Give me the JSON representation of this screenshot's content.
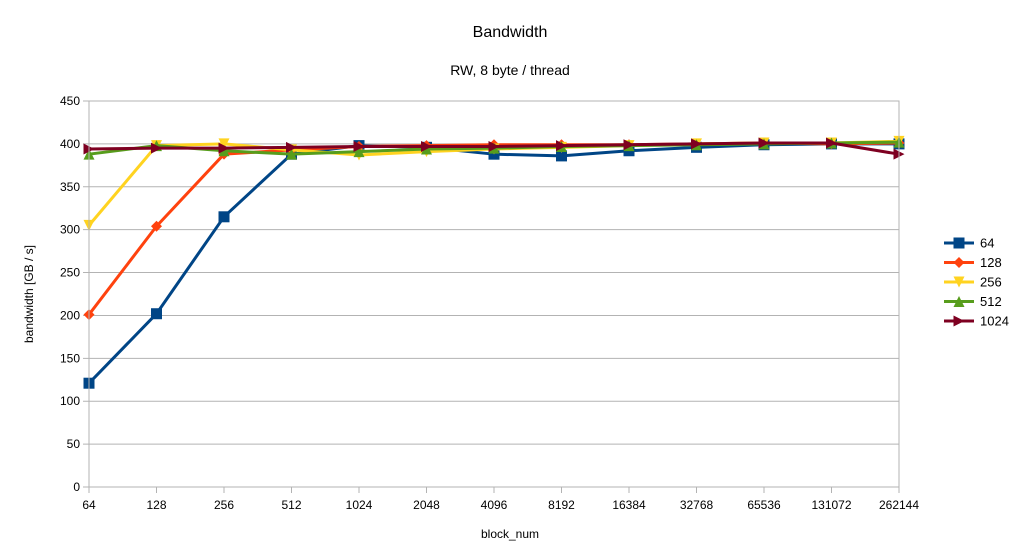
{
  "chart_data": {
    "type": "line",
    "title": "Bandwidth",
    "subtitle": "RW, 8 byte / thread",
    "xlabel": "block_num",
    "ylabel": "bandwidth [GB / s]",
    "categories": [
      "64",
      "128",
      "256",
      "512",
      "1024",
      "2048",
      "4096",
      "8192",
      "16384",
      "32768",
      "65536",
      "131072",
      "262144"
    ],
    "ylim": [
      0,
      450
    ],
    "yticks": [
      0,
      50,
      100,
      150,
      200,
      250,
      300,
      350,
      400,
      450
    ],
    "grid": "horizontal",
    "legend_position": "right",
    "series": [
      {
        "name": "64",
        "color": "#004586",
        "marker": "square",
        "values": [
          121,
          202,
          315,
          388,
          398,
          396,
          388,
          386,
          392,
          396,
          399,
          400,
          400
        ]
      },
      {
        "name": "128",
        "color": "#ff420e",
        "marker": "diamond",
        "values": [
          201,
          304,
          388,
          393,
          397,
          398,
          399,
          399,
          399,
          400,
          401,
          400,
          401
        ]
      },
      {
        "name": "256",
        "color": "#ffd320",
        "marker": "triangle-down",
        "values": [
          305,
          398,
          400,
          393,
          387,
          391,
          394,
          396,
          398,
          400,
          401,
          401,
          403
        ]
      },
      {
        "name": "512",
        "color": "#579d1c",
        "marker": "triangle-up",
        "values": [
          388,
          398,
          392,
          388,
          391,
          394,
          395,
          397,
          398,
          399,
          400,
          401,
          402
        ]
      },
      {
        "name": "1024",
        "color": "#7e0021",
        "marker": "triangle-right",
        "values": [
          394,
          395,
          395,
          396,
          397,
          397,
          397,
          398,
          399,
          400,
          401,
          401,
          388
        ]
      }
    ]
  }
}
